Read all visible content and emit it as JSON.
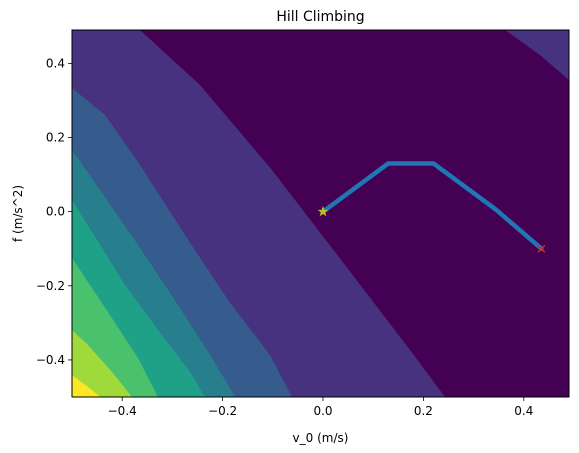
{
  "chart_data": {
    "type": "contour",
    "title": "Hill Climbing",
    "xlabel": "v_0 (m/s)",
    "ylabel": "f (m/s^2)",
    "xlim": [
      -0.5,
      0.49
    ],
    "ylim": [
      -0.5,
      0.49
    ],
    "x_ticks": [
      -0.4,
      -0.2,
      0.0,
      0.2,
      0.4
    ],
    "x_tick_labels": [
      "−0.4",
      "−0.2",
      "0.0",
      "0.2",
      "0.4"
    ],
    "y_ticks": [
      -0.4,
      -0.2,
      0.0,
      0.2,
      0.4
    ],
    "y_tick_labels": [
      "−0.4",
      "−0.2",
      "0.0",
      "0.2",
      "0.4"
    ],
    "grid": false,
    "colormap": "viridis",
    "contour_levels": [
      {
        "color": "#440154"
      },
      {
        "color": "#46327e"
      },
      {
        "color": "#365c8d"
      },
      {
        "color": "#277f8e"
      },
      {
        "color": "#1fa187"
      },
      {
        "color": "#4ac16d"
      },
      {
        "color": "#9fda3a"
      },
      {
        "color": "#fde725"
      }
    ],
    "series": [
      {
        "style": "path",
        "color": "#1f77b4",
        "points": [
          [
            0.0,
            0.0
          ],
          [
            0.13,
            0.13
          ],
          [
            0.22,
            0.13
          ],
          [
            0.3,
            0.05
          ],
          [
            0.345,
            0.005
          ],
          [
            0.435,
            -0.1
          ]
        ]
      },
      {
        "style": "start-marker",
        "marker": "star",
        "color": "#bcbd22",
        "points": [
          [
            0.0,
            0.0
          ]
        ]
      },
      {
        "style": "end-marker",
        "marker": "x",
        "color": "#d62728",
        "points": [
          [
            0.435,
            -0.1
          ]
        ]
      }
    ]
  }
}
